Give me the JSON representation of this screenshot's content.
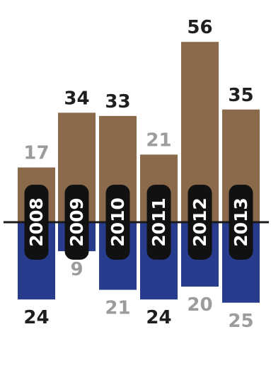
{
  "chart_data": {
    "type": "bar",
    "categories": [
      "2008",
      "2009",
      "2010",
      "2011",
      "2012",
      "2013"
    ],
    "series": [
      {
        "values": [
          17,
          34,
          33,
          21,
          56,
          35
        ],
        "label_styles": [
          "light",
          "dark",
          "dark",
          "light",
          "dark",
          "dark"
        ]
      },
      {
        "values": [
          24,
          9,
          21,
          24,
          20,
          25
        ],
        "label_styles": [
          "dark",
          "light",
          "light",
          "dark",
          "light",
          "light"
        ]
      }
    ],
    "colors": {
      "upper": "#8b6a4c",
      "lower": "#283c8e",
      "baseline": "#1a1a1a",
      "year_pill": "#111111",
      "label_dark": "#1f1f1f",
      "label_light": "#9c9c9c"
    }
  }
}
